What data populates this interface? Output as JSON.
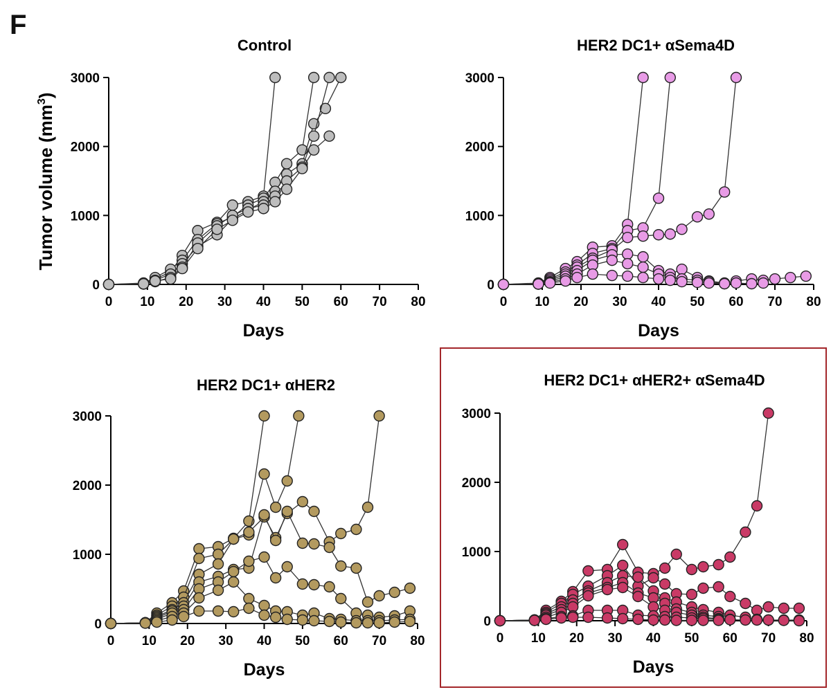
{
  "figure": {
    "panel_letter": "F",
    "y_label_main": "Tumor volume (mm",
    "y_label_sup": "3",
    "y_label_close": ")",
    "highlight_color": "#a3262a"
  },
  "chart_data": [
    {
      "type": "line",
      "title": "Control",
      "xlabel": "Days",
      "ylabel": "Tumor volume (mm3)",
      "xlim": [
        0,
        80
      ],
      "ylim": [
        0,
        3000
      ],
      "xticks": [
        "0",
        "10",
        "20",
        "30",
        "40",
        "50",
        "60",
        "70",
        "80"
      ],
      "yticks": [
        "0",
        "1000",
        "2000",
        "3000"
      ],
      "grid": false,
      "legend": "none",
      "marker_color": "#bdbdbd",
      "series": [
        {
          "x": [
            0,
            9,
            12,
            16,
            19,
            23,
            28,
            32,
            36,
            40,
            43
          ],
          "y": [
            0,
            20,
            80,
            180,
            420,
            780,
            900,
            1150,
            1200,
            1280,
            3000
          ]
        },
        {
          "x": [
            0,
            9,
            12,
            16,
            19,
            23,
            28,
            32,
            36,
            40,
            43,
            46,
            50,
            53
          ],
          "y": [
            0,
            15,
            100,
            220,
            350,
            650,
            880,
            980,
            1150,
            1250,
            1480,
            1750,
            1950,
            3000
          ]
        },
        {
          "x": [
            0,
            9,
            12,
            16,
            19,
            23,
            28,
            32,
            36,
            40,
            43,
            46,
            50,
            53,
            56,
            60
          ],
          "y": [
            0,
            10,
            60,
            150,
            300,
            550,
            720,
            950,
            1080,
            1200,
            1350,
            1600,
            1750,
            2330,
            2550,
            3000
          ]
        },
        {
          "x": [
            0,
            9,
            12,
            16,
            19,
            23,
            28,
            32,
            36,
            40,
            43,
            46,
            50,
            53,
            57
          ],
          "y": [
            0,
            5,
            40,
            100,
            250,
            600,
            850,
            1000,
            1100,
            1150,
            1280,
            1500,
            1700,
            2150,
            3000
          ]
        },
        {
          "x": [
            0,
            9,
            12,
            16,
            19,
            23,
            28,
            32,
            36,
            40,
            43,
            46,
            50,
            53,
            57
          ],
          "y": [
            0,
            8,
            50,
            80,
            230,
            520,
            800,
            930,
            1050,
            1100,
            1200,
            1380,
            1680,
            1950,
            2150
          ]
        }
      ]
    },
    {
      "type": "line",
      "title": "HER2 DC1+ αSema4D",
      "xlabel": "Days",
      "ylabel": "",
      "xlim": [
        0,
        80
      ],
      "ylim": [
        0,
        3000
      ],
      "xticks": [
        "0",
        "10",
        "20",
        "30",
        "40",
        "50",
        "60",
        "70",
        "80"
      ],
      "yticks": [
        "0",
        "1000",
        "2000",
        "3000"
      ],
      "grid": false,
      "legend": "none",
      "marker_color": "#e89be6",
      "series": [
        {
          "x": [
            0,
            9,
            12,
            16,
            19,
            23,
            28,
            32,
            36
          ],
          "y": [
            0,
            20,
            100,
            230,
            330,
            540,
            560,
            870,
            3000
          ]
        },
        {
          "x": [
            0,
            9,
            12,
            16,
            19,
            23,
            28,
            32,
            36,
            40,
            43
          ],
          "y": [
            0,
            15,
            80,
            180,
            280,
            450,
            520,
            780,
            820,
            1250,
            3000
          ]
        },
        {
          "x": [
            0,
            9,
            12,
            16,
            19,
            23,
            28,
            32,
            36,
            40,
            43,
            46,
            50,
            53,
            57,
            60
          ],
          "y": [
            0,
            10,
            60,
            150,
            250,
            380,
            500,
            680,
            700,
            720,
            730,
            800,
            980,
            1020,
            1340,
            3000
          ]
        },
        {
          "x": [
            0,
            9,
            12,
            16,
            19,
            23,
            28,
            32,
            36,
            40,
            43,
            46,
            50,
            53,
            57,
            60,
            64,
            67,
            70,
            74,
            78
          ],
          "y": [
            0,
            5,
            40,
            120,
            200,
            350,
            430,
            440,
            400,
            200,
            150,
            220,
            100,
            50,
            20,
            50,
            80,
            60,
            80,
            100,
            120
          ]
        },
        {
          "x": [
            0,
            9,
            12,
            16,
            19,
            23,
            28,
            32,
            36,
            40,
            43,
            46,
            50,
            53,
            57,
            60,
            64,
            67
          ],
          "y": [
            0,
            5,
            30,
            80,
            150,
            280,
            350,
            300,
            250,
            150,
            100,
            80,
            60,
            40,
            10,
            20,
            10,
            20
          ]
        },
        {
          "x": [
            0,
            9,
            12,
            16,
            19,
            23,
            28,
            32,
            36,
            40,
            43,
            46,
            50,
            53,
            57
          ],
          "y": [
            0,
            5,
            20,
            50,
            100,
            150,
            130,
            120,
            100,
            80,
            60,
            40,
            30,
            20,
            10
          ]
        }
      ]
    },
    {
      "type": "line",
      "title": "HER2 DC1+ αHER2",
      "xlabel": "Days",
      "ylabel": "",
      "xlim": [
        0,
        80
      ],
      "ylim": [
        0,
        3000
      ],
      "xticks": [
        "0",
        "10",
        "20",
        "30",
        "40",
        "50",
        "60",
        "70",
        "80"
      ],
      "yticks": [
        "0",
        "1000",
        "2000",
        "3000"
      ],
      "grid": false,
      "legend": "none",
      "marker_color": "#b39a5f",
      "series": [
        {
          "x": [
            0,
            9,
            12,
            16,
            19,
            23,
            28,
            32,
            36,
            40
          ],
          "y": [
            0,
            10,
            150,
            300,
            470,
            1080,
            1110,
            1230,
            1480,
            3000
          ]
        },
        {
          "x": [
            0,
            9,
            12,
            16,
            19,
            23,
            28,
            32,
            36,
            40,
            43,
            46,
            49
          ],
          "y": [
            0,
            10,
            120,
            250,
            380,
            940,
            1000,
            1220,
            1280,
            2160,
            1680,
            2060,
            3000
          ]
        },
        {
          "x": [
            0,
            9,
            12,
            16,
            19,
            23,
            28,
            32,
            36,
            40,
            43,
            46,
            50,
            53,
            57,
            60,
            64,
            67,
            70
          ],
          "y": [
            0,
            10,
            100,
            200,
            300,
            710,
            860,
            1220,
            1320,
            1540,
            1240,
            1590,
            1760,
            1620,
            1180,
            1300,
            1360,
            1680,
            3000
          ]
        },
        {
          "x": [
            0,
            9,
            12,
            16,
            19,
            23,
            28,
            32,
            36,
            40,
            43,
            46,
            50,
            53,
            57,
            60,
            64,
            67,
            70,
            74,
            78
          ],
          "y": [
            0,
            10,
            80,
            180,
            250,
            600,
            680,
            780,
            800,
            1570,
            1200,
            1620,
            1160,
            1150,
            1100,
            830,
            800,
            310,
            400,
            450,
            510
          ]
        },
        {
          "x": [
            0,
            9,
            12,
            16,
            19,
            23,
            28,
            32,
            36,
            40,
            43,
            46,
            50,
            53,
            57,
            60,
            64,
            67,
            70,
            74,
            78
          ],
          "y": [
            0,
            10,
            60,
            150,
            200,
            500,
            600,
            750,
            900,
            960,
            660,
            820,
            570,
            560,
            530,
            360,
            150,
            120,
            90,
            110,
            180
          ]
        },
        {
          "x": [
            0,
            9,
            12,
            16,
            19,
            23,
            28,
            32,
            36,
            40,
            43,
            46,
            50,
            53,
            57,
            60,
            64,
            67,
            70,
            74,
            78
          ],
          "y": [
            0,
            10,
            40,
            100,
            150,
            370,
            480,
            600,
            360,
            260,
            180,
            170,
            120,
            150,
            70,
            60,
            40,
            40,
            40,
            50,
            60
          ]
        },
        {
          "x": [
            0,
            9,
            12,
            16,
            19,
            23,
            28,
            32,
            36,
            40,
            43,
            46,
            50,
            53,
            57,
            60,
            64,
            67,
            70,
            74,
            78
          ],
          "y": [
            0,
            5,
            20,
            50,
            100,
            180,
            180,
            170,
            220,
            120,
            90,
            60,
            50,
            40,
            30,
            20,
            10,
            10,
            10,
            20,
            30
          ]
        }
      ]
    },
    {
      "type": "line",
      "title": "HER2 DC1+ αHER2+ αSema4D",
      "xlabel": "Days",
      "ylabel": "",
      "xlim": [
        0,
        80
      ],
      "ylim": [
        0,
        3000
      ],
      "xticks": [
        "0",
        "10",
        "20",
        "30",
        "40",
        "50",
        "60",
        "70",
        "80"
      ],
      "yticks": [
        "0",
        "1000",
        "2000",
        "3000"
      ],
      "grid": false,
      "legend": "none",
      "marker_color": "#c93a66",
      "series": [
        {
          "x": [
            0,
            9,
            12,
            16,
            19,
            23,
            28,
            32,
            36,
            40,
            43,
            46,
            50,
            53,
            57,
            60,
            64,
            67,
            70
          ],
          "y": [
            0,
            10,
            150,
            280,
            420,
            720,
            740,
            1100,
            700,
            680,
            760,
            960,
            740,
            780,
            810,
            920,
            1280,
            1660,
            3000
          ]
        },
        {
          "x": [
            0,
            9,
            12,
            16,
            19,
            23,
            28,
            32,
            36,
            40,
            43,
            46,
            50,
            53,
            57,
            60,
            64,
            67,
            70,
            74,
            78
          ],
          "y": [
            0,
            10,
            120,
            250,
            380,
            500,
            650,
            800,
            500,
            620,
            530,
            390,
            380,
            470,
            490,
            350,
            250,
            150,
            200,
            180,
            180
          ]
        },
        {
          "x": [
            0,
            9,
            12,
            16,
            19,
            23,
            28,
            32,
            36,
            40,
            43,
            46,
            50,
            53,
            57,
            60,
            64,
            67,
            70,
            74,
            78
          ],
          "y": [
            0,
            10,
            100,
            200,
            300,
            430,
            550,
            650,
            630,
            430,
            330,
            270,
            200,
            160,
            120,
            80,
            50,
            20,
            10,
            10,
            10
          ]
        },
        {
          "x": [
            0,
            9,
            12,
            16,
            19,
            23,
            28,
            32,
            36,
            40,
            43,
            46,
            50,
            53,
            57
          ],
          "y": [
            0,
            10,
            80,
            160,
            250,
            400,
            480,
            550,
            400,
            330,
            250,
            170,
            120,
            80,
            60
          ]
        },
        {
          "x": [
            0,
            9,
            12,
            16,
            19,
            23,
            28,
            32,
            36,
            40,
            43,
            46,
            50,
            53,
            57,
            60
          ],
          "y": [
            0,
            5,
            50,
            120,
            200,
            360,
            450,
            480,
            350,
            200,
            150,
            120,
            80,
            50,
            30,
            20
          ]
        },
        {
          "x": [
            0,
            9,
            12,
            16,
            19,
            23,
            28,
            32,
            36,
            40,
            43,
            46,
            50,
            53,
            57,
            60,
            64,
            67,
            70,
            74,
            78
          ],
          "y": [
            0,
            5,
            30,
            60,
            70,
            150,
            150,
            150,
            80,
            70,
            60,
            50,
            40,
            30,
            20,
            15,
            10,
            10,
            10,
            5,
            0
          ]
        },
        {
          "x": [
            0,
            9,
            12,
            16,
            19,
            23,
            28,
            32,
            36,
            40,
            43,
            46,
            50,
            53,
            57
          ],
          "y": [
            0,
            5,
            20,
            40,
            50,
            50,
            40,
            30,
            20,
            10,
            10,
            5,
            5,
            5,
            5
          ]
        }
      ]
    }
  ]
}
